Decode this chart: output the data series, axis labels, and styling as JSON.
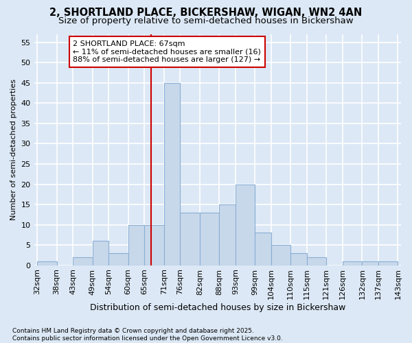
{
  "title1": "2, SHORTLAND PLACE, BICKERSHAW, WIGAN, WN2 4AN",
  "title2": "Size of property relative to semi-detached houses in Bickershaw",
  "xlabel": "Distribution of semi-detached houses by size in Bickershaw",
  "ylabel": "Number of semi-detached properties",
  "bar_color": "#c8d8eb",
  "bar_edge_color": "#89afd4",
  "background_color": "#dce8f5",
  "grid_color": "#ffffff",
  "vline_color": "#cc0000",
  "vline_x": 67,
  "annotation_text": "2 SHORTLAND PLACE: 67sqm\n← 11% of semi-detached houses are smaller (16)\n88% of semi-detached houses are larger (127) →",
  "annotation_box_color": "#ffffff",
  "annotation_box_edge": "#cc0000",
  "bins": [
    32,
    38,
    43,
    49,
    54,
    60,
    65,
    71,
    76,
    82,
    88,
    93,
    99,
    104,
    110,
    115,
    121,
    126,
    132,
    137,
    143
  ],
  "bin_labels": [
    "32sqm",
    "38sqm",
    "43sqm",
    "49sqm",
    "54sqm",
    "60sqm",
    "65sqm",
    "71sqm",
    "76sqm",
    "82sqm",
    "88sqm",
    "93sqm",
    "99sqm",
    "104sqm",
    "110sqm",
    "115sqm",
    "121sqm",
    "126sqm",
    "132sqm",
    "137sqm",
    "143sqm"
  ],
  "bar_heights": [
    1,
    0,
    2,
    6,
    3,
    10,
    10,
    45,
    13,
    13,
    15,
    20,
    8,
    5,
    3,
    2,
    0,
    1,
    1,
    1
  ],
  "ylim": [
    0,
    57
  ],
  "yticks": [
    0,
    5,
    10,
    15,
    20,
    25,
    30,
    35,
    40,
    45,
    50,
    55
  ],
  "footnote": "Contains HM Land Registry data © Crown copyright and database right 2025.\nContains public sector information licensed under the Open Government Licence v3.0.",
  "title1_fontsize": 10.5,
  "title2_fontsize": 9.5,
  "xlabel_fontsize": 9,
  "ylabel_fontsize": 8,
  "tick_fontsize": 8,
  "annotation_fontsize": 8,
  "footnote_fontsize": 6.5
}
